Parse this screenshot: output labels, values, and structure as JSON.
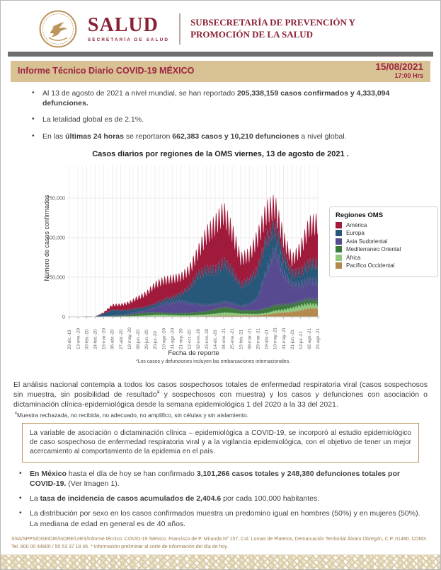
{
  "header": {
    "brand": "SALUD",
    "brand_sub": "SECRETARÍA DE SALUD",
    "subsecretaria": "SUBSECRETARÍA DE PREVENCIÓN Y PROMOCIÓN DE LA SALUD",
    "colors": {
      "maroon": "#8A2033",
      "banner_maroon": "#9D2241",
      "gold": "#BC955C",
      "banner_bg": "#D8C193"
    }
  },
  "banner": {
    "title": "Informe Técnico Diario COVID-19 MÉXICO",
    "date": "15/08/2021",
    "time": "17:00 Hrs"
  },
  "global_bullets": [
    [
      {
        "t": "Al 13 de agosto de 2021 a nivel mundial, se han reportado ",
        "b": false
      },
      {
        "t": "205,338,159 casos confirmados y 4,333,094 defunciones.",
        "b": true
      }
    ],
    [
      {
        "t": "La letalidad global es de 2.1%.",
        "b": false
      }
    ],
    [
      {
        "t": "En las ",
        "b": false
      },
      {
        "t": "últimas 24 horas",
        "b": true
      },
      {
        "t": " se reportaron ",
        "b": false
      },
      {
        "t": "662,383 casos y 10,210 defunciones",
        "b": true
      },
      {
        "t": " a nivel global.",
        "b": false
      }
    ]
  ],
  "chart_data": {
    "type": "bar",
    "stacked": true,
    "title": "Casos diarios por regiones de la OMS viernes, 13 de agosto de 2021 .",
    "xlabel": "Fecha de reporte",
    "ylabel": "Número de casos confirmados",
    "footnote": "*Los casos y defunciones incluyen las embarcaciones internacionales.",
    "legend_title": "Regiones OMS",
    "legend_position": "right",
    "grid": true,
    "ylim": [
      0,
      937000
    ],
    "yticks": [
      0,
      250000,
      500000,
      750000
    ],
    "ytick_labels": [
      "0",
      "250,000",
      "500,000",
      "750,000"
    ],
    "categories": [
      "23-dic.-19",
      "13-ene.-20",
      "03-feb.-20",
      "24-feb.-20",
      "16-mar.-20",
      "06-abr.-20",
      "27-abr.-20",
      "18-may.-20",
      "08-jun.-20",
      "29-jun.-20",
      "20-jul.-20",
      "10-ago.-20",
      "31-ago.-20",
      "21-sep.-20",
      "12-oct.-20",
      "02-nov.-20",
      "23-nov.-20",
      "14-dic.-20",
      "04-ene.-21",
      "25-ene.-21",
      "15-feb.-21",
      "08-mar.-21",
      "29-mar.-21",
      "19-abr.-21",
      "10-may.-21",
      "31-may.-21",
      "21-jun.-21",
      "12-jul.-21",
      "02-ago.-21",
      "23-ago.-21"
    ],
    "series": [
      {
        "name": "América",
        "color": "#A01A3C",
        "values": [
          0,
          100,
          500,
          500,
          7000,
          33000,
          40000,
          50000,
          75000,
          95000,
          135000,
          140000,
          130000,
          120000,
          125000,
          155000,
          245000,
          320000,
          350000,
          275000,
          185000,
          180000,
          225000,
          190000,
          150000,
          115000,
          100000,
          160000,
          270000,
          280000
        ]
      },
      {
        "name": "Europa",
        "color": "#27587A",
        "values": [
          0,
          0,
          100,
          500,
          20000,
          42000,
          32000,
          28000,
          25000,
          22000,
          25000,
          28000,
          35000,
          50000,
          110000,
          210000,
          250000,
          240000,
          280000,
          230000,
          150000,
          170000,
          200000,
          230000,
          160000,
          120000,
          80000,
          90000,
          120000,
          130000
        ]
      },
      {
        "name": "Asia Sudoriental",
        "color": "#584A90",
        "values": [
          0,
          0,
          0,
          100,
          500,
          2000,
          5000,
          8000,
          12000,
          20000,
          35000,
          60000,
          78000,
          85000,
          70000,
          55000,
          45000,
          35000,
          38000,
          35000,
          30000,
          45000,
          90000,
          260000,
          390000,
          230000,
          130000,
          120000,
          130000,
          130000
        ]
      },
      {
        "name": "Mediterraneo Oriental",
        "color": "#3B7A3B",
        "values": [
          0,
          0,
          0,
          0,
          1000,
          3000,
          5000,
          10000,
          16000,
          18000,
          16000,
          13000,
          12000,
          14000,
          16000,
          18000,
          22000,
          30000,
          38000,
          32000,
          22000,
          22000,
          25000,
          32000,
          38000,
          35000,
          28000,
          30000,
          32000,
          32000
        ]
      },
      {
        "name": "África",
        "color": "#8FC87E",
        "values": [
          0,
          0,
          0,
          0,
          500,
          1000,
          2000,
          3000,
          5000,
          8000,
          12000,
          12000,
          10000,
          8000,
          8000,
          10000,
          12000,
          16000,
          22000,
          20000,
          14000,
          12000,
          10000,
          12000,
          18000,
          20000,
          28000,
          35000,
          30000,
          28000
        ]
      },
      {
        "name": "Pacífico Occidental",
        "color": "#B3894E",
        "values": [
          0,
          100,
          3000,
          1000,
          1000,
          1000,
          1000,
          1000,
          2000,
          2000,
          3000,
          3000,
          3000,
          3000,
          3000,
          4000,
          5000,
          6000,
          8000,
          8000,
          8000,
          9000,
          10000,
          15000,
          25000,
          30000,
          35000,
          45000,
          60000,
          60000
        ]
      }
    ],
    "stack_order_bottom_to_top": [
      "Pacífico Occidental",
      "África",
      "Mediterraneo Oriental",
      "Asia Sudoriental",
      "Europa",
      "América"
    ]
  },
  "analysis": {
    "paragraph": [
      {
        "t": "El análisis nacional contempla a todos los casos sospechosos totales de enfermedad respiratoria viral (casos sospechosos sin muestra, sin posibilidad de resultado",
        "b": false
      },
      {
        "t": "¥",
        "b": false,
        "sup": true
      },
      {
        "t": " y sospechosos con muestra) y los casos y defunciones con asociación o dictaminación clínica-epidemiológica desde la semana epidemiológica 1 del 2020 a la 33 del 2021.",
        "b": false
      }
    ],
    "footnote": [
      {
        "t": "¥",
        "b": false,
        "sup": true
      },
      {
        "t": "Muestra rechazada, no recibida, no adecuado, no amplifico, sin células y sin aislamiento.",
        "b": false
      }
    ],
    "box_note": "La variable de asociación o dictaminación clínica – epidemiológica a COVID-19, se incorporó al estudio epidemiológico de caso sospechoso de enfermedad respiratoria viral y a la vigilancia epidemiológica, con el objetivo de tener un mejor acercamiento al comportamiento de la epidemia en el país."
  },
  "mexico_bullets": [
    [
      {
        "t": "En México",
        "b": true
      },
      {
        "t": " hasta el día de hoy se han confirmado ",
        "b": false
      },
      {
        "t": "3,101,266 casos totales y 248,380 defunciones totales por COVID-19.",
        "b": true
      },
      {
        "t": " (Ver Imagen 1).",
        "b": false
      }
    ],
    [
      {
        "t": "La ",
        "b": false
      },
      {
        "t": "tasa de incidencia de casos acumulados de 2,404.6",
        "b": true
      },
      {
        "t": " por cada 100,000 habitantes.",
        "b": false
      }
    ],
    [
      {
        "t": "La distribución por sexo en los casos confirmados muestra un predomino igual en hombres (50%) y en mujeres (50%). La mediana de edad en general es de 40 años.",
        "b": false
      }
    ]
  ],
  "footer": {
    "text": "SSA/SPPS/DGE/DIE/InDRE/UIES/Informe técnico. COVID-19 /México. Francisco de P. Miranda Nº 157, Col. Lomas de Plateros, Demarcación Territorial Álvaro Obregón, C.P. 01480. CDMX. Tel. 800 00 44800 / 55 53 37 18 46. * Información preliminar al corte de información del día de hoy."
  }
}
